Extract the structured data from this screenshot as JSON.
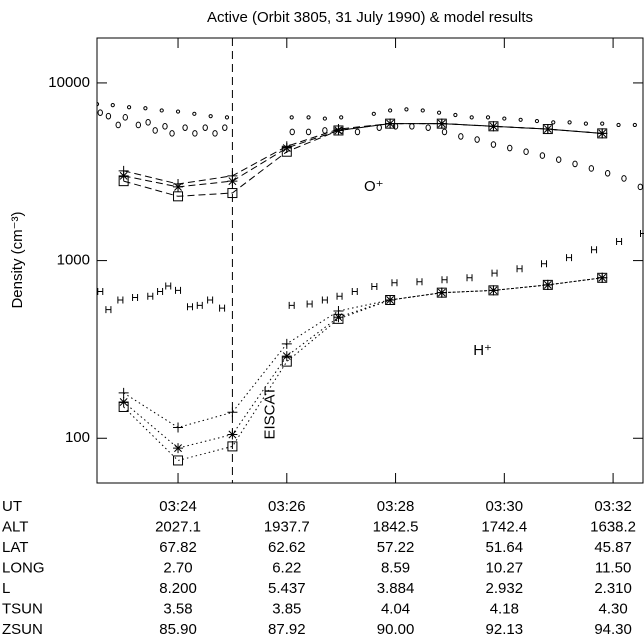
{
  "chart_data": {
    "type": "scatter",
    "title": "Active (Orbit 3805, 31 July 1990) & model results",
    "y_label": "Density (cm⁻³)",
    "log_y": true,
    "xlim": [
      22.51,
      32.55
    ],
    "ylim": [
      56,
      17900
    ],
    "yticks": [
      100,
      1000,
      10000
    ],
    "xticks": [
      {
        "value": 24,
        "label": "03:24"
      },
      {
        "value": 26,
        "label": "03:26"
      },
      {
        "value": 28,
        "label": "03:28"
      },
      {
        "value": 30,
        "label": "03:30"
      },
      {
        "value": 32,
        "label": "03:32"
      }
    ],
    "x_row_label": "UT",
    "orbit_rows": [
      {
        "name": "ALT",
        "values": [
          "2027.1",
          "1937.7",
          "1842.5",
          "1742.4",
          "1638.2"
        ]
      },
      {
        "name": "LAT",
        "values": [
          "67.82",
          "62.62",
          "57.22",
          "51.64",
          "45.87"
        ]
      },
      {
        "name": "LONG",
        "values": [
          "2.70",
          "6.22",
          "8.59",
          "10.27",
          "11.50"
        ]
      },
      {
        "name": "L",
        "values": [
          "8.200",
          "5.437",
          "3.884",
          "2.932",
          "2.310"
        ]
      },
      {
        "name": "TSUN",
        "values": [
          "3.58",
          "3.85",
          "4.04",
          "4.18",
          "4.30"
        ]
      },
      {
        "name": "ZSUN",
        "values": [
          "85.90",
          "87.92",
          "90.00",
          "92.13",
          "94.30"
        ]
      }
    ],
    "vline": {
      "x": 25.0,
      "label": "EISCAT"
    },
    "annotations": [
      {
        "text": "O⁺",
        "x": 27.6,
        "y": 2600
      },
      {
        "text": "H⁺",
        "x": 29.6,
        "y": 310
      }
    ],
    "series": [
      {
        "marker": "dot",
        "line": "none",
        "color": "#000",
        "x": [
          22.51,
          22.8,
          23.1,
          23.4,
          23.7,
          24.0,
          24.3,
          24.6,
          24.9,
          26.09,
          26.4,
          26.7,
          27.0,
          27.6,
          27.9,
          28.2,
          28.5,
          28.8,
          29.1,
          29.4,
          29.7,
          30.0,
          30.3,
          30.6,
          30.9,
          31.2,
          31.5,
          31.8,
          32.1,
          32.4
        ],
        "values": [
          7600,
          7500,
          7300,
          7200,
          7000,
          6900,
          6700,
          6500,
          6400,
          6400,
          6400,
          6300,
          6400,
          6700,
          7000,
          7100,
          7000,
          6800,
          6600,
          6400,
          6400,
          6300,
          6200,
          6100,
          6000,
          6000,
          5900,
          5900,
          5800,
          5800
        ]
      },
      {
        "marker": "circle",
        "line": "none",
        "color": "#000",
        "x": [
          22.57,
          22.72,
          22.9,
          23.03,
          23.27,
          23.45,
          23.58,
          23.76,
          23.89,
          24.13,
          24.31,
          24.5,
          24.68,
          24.86,
          26.1,
          26.4,
          26.7,
          27.0,
          27.3,
          27.7,
          28.0,
          28.3,
          28.6,
          28.9,
          29.2,
          29.5,
          29.8,
          30.1,
          30.4,
          30.7,
          31.0,
          31.3,
          31.6,
          31.9,
          32.2,
          32.5
        ],
        "values": [
          6800,
          6500,
          5800,
          6400,
          5800,
          6000,
          5400,
          5700,
          5200,
          5600,
          5200,
          5600,
          5200,
          5600,
          5300,
          5300,
          5400,
          5400,
          5300,
          5600,
          5700,
          5700,
          5600,
          5300,
          5000,
          4800,
          4500,
          4300,
          4100,
          3900,
          3700,
          3500,
          3300,
          3100,
          2900,
          2600
        ]
      },
      {
        "marker": "H",
        "line": "none",
        "color": "#000",
        "x": [
          22.57,
          22.72,
          22.94,
          23.21,
          23.49,
          23.67,
          23.82,
          24.0,
          24.22,
          24.4,
          24.59,
          24.81,
          26.09,
          26.42,
          26.7,
          26.97,
          27.25,
          27.61,
          27.98,
          28.44,
          28.9,
          29.36,
          29.82,
          30.28,
          30.73,
          31.19,
          31.65,
          32.11,
          32.55
        ],
        "values": [
          670,
          530,
          600,
          620,
          630,
          670,
          720,
          680,
          550,
          560,
          600,
          540,
          560,
          570,
          600,
          630,
          670,
          715,
          750,
          760,
          780,
          800,
          850,
          900,
          960,
          1040,
          1150,
          1280,
          1420
        ]
      },
      {
        "marker": "plus",
        "line": "dashed",
        "color": "#000",
        "x": [
          23.0,
          24.0,
          25.0,
          26.0,
          26.95,
          27.9,
          28.85,
          29.8,
          30.8,
          31.8
        ],
        "values": [
          3200,
          2700,
          3000,
          4400,
          5500,
          5900,
          5900,
          5700,
          5500,
          5200
        ]
      },
      {
        "marker": "asterisk",
        "line": "dashed",
        "color": "#000",
        "x": [
          23.0,
          24.0,
          25.0,
          26.0,
          26.95,
          27.9,
          28.85,
          29.8,
          30.8,
          31.8
        ],
        "values": [
          3000,
          2600,
          2800,
          4300,
          5400,
          5900,
          5900,
          5700,
          5500,
          5200
        ]
      },
      {
        "marker": "square",
        "line": "dashed",
        "color": "#000",
        "x": [
          23.0,
          24.0,
          25.0,
          26.0,
          26.95,
          27.9,
          28.85,
          29.8,
          30.8,
          31.8
        ],
        "values": [
          2800,
          2300,
          2400,
          4100,
          5400,
          5900,
          5900,
          5700,
          5500,
          5200
        ]
      },
      {
        "marker": "plus",
        "line": "dotted",
        "color": "#000",
        "x": [
          23.0,
          24.0,
          25.0,
          26.0,
          26.95,
          27.9,
          28.85,
          29.8,
          30.8,
          31.8
        ],
        "values": [
          180,
          115,
          140,
          340,
          520,
          600,
          660,
          680,
          730,
          800
        ]
      },
      {
        "marker": "asterisk",
        "line": "dotted",
        "color": "#000",
        "x": [
          23.0,
          24.0,
          25.0,
          26.0,
          26.95,
          27.9,
          28.85,
          29.8,
          30.8,
          31.8
        ],
        "values": [
          160,
          88,
          105,
          290,
          480,
          600,
          660,
          680,
          730,
          800
        ]
      },
      {
        "marker": "square",
        "line": "dotted",
        "color": "#000",
        "x": [
          23.0,
          24.0,
          25.0,
          26.0,
          26.95,
          27.9,
          28.85,
          29.8,
          30.8,
          31.8
        ],
        "values": [
          150,
          75,
          90,
          270,
          470,
          600,
          660,
          680,
          730,
          800
        ]
      }
    ]
  }
}
